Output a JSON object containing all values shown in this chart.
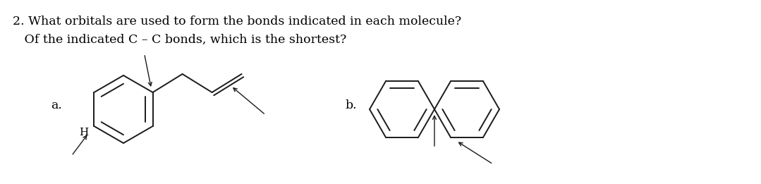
{
  "title_line1": "2. What orbitals are used to form the bonds indicated in each molecule?",
  "title_line2": "   Of the indicated C – C bonds, which is the shortest?",
  "label_a": "a.",
  "label_b": "b.",
  "label_H": "H",
  "bg_color": "#ffffff",
  "line_color": "#1a1a1a",
  "text_color": "#000000",
  "title_fontsize": 12.5,
  "label_fontsize": 12.5
}
